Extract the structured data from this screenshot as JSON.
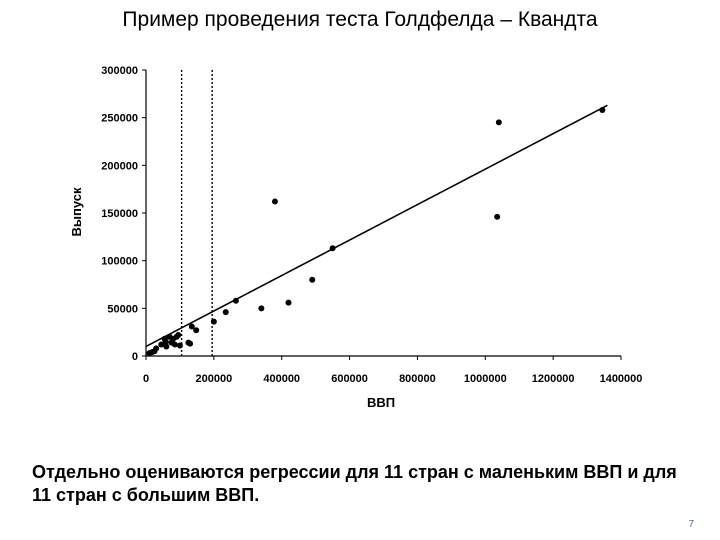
{
  "slide": {
    "title": "Пример проведения теста Голдфелда – Квандта",
    "caption": "Отдельно оцениваются регрессии для 11 стран с маленьким ВВП и для 11 стран с большим ВВП.",
    "page_number": "7"
  },
  "chart_data": {
    "type": "scatter",
    "title": "",
    "xlabel": "ВВП",
    "ylabel": "Выпуск",
    "xlim": [
      0,
      1400000
    ],
    "ylim": [
      0,
      300000
    ],
    "x_ticks": [
      0,
      200000,
      400000,
      600000,
      800000,
      1000000,
      1200000,
      1400000
    ],
    "y_ticks": [
      0,
      50000,
      100000,
      150000,
      200000,
      250000,
      300000
    ],
    "x_tick_labels": [
      "0",
      "200000",
      "400000",
      "600000",
      "800000",
      "1000000",
      "1200000",
      "1400000"
    ],
    "y_tick_labels": [
      "0",
      "50000",
      "100000",
      "150000",
      "200000",
      "250000",
      "300000"
    ],
    "grid": false,
    "legend": "none",
    "marker_color": "#000000",
    "points": {
      "x": [
        10000,
        18000,
        25000,
        30000,
        45000,
        55000,
        58000,
        60000,
        70000,
        75000,
        80000,
        85000,
        90000,
        95000,
        100000,
        125000,
        130000,
        135000,
        148000,
        200000,
        235000,
        265000,
        340000,
        380000,
        420000,
        490000,
        550000,
        1035000,
        1040000,
        1345000
      ],
      "y": [
        3000,
        4000,
        5000,
        8000,
        12000,
        18000,
        15000,
        10000,
        20000,
        14000,
        18000,
        12000,
        20000,
        22000,
        11000,
        14000,
        13000,
        31000,
        27000,
        36000,
        46000,
        58000,
        50000,
        162000,
        56000,
        80000,
        113000,
        146000,
        245000,
        258000
      ]
    },
    "trend_line": {
      "x": [
        0,
        1360000
      ],
      "y": [
        10000,
        263000
      ]
    },
    "dividers_x": [
      105000,
      195000
    ]
  }
}
